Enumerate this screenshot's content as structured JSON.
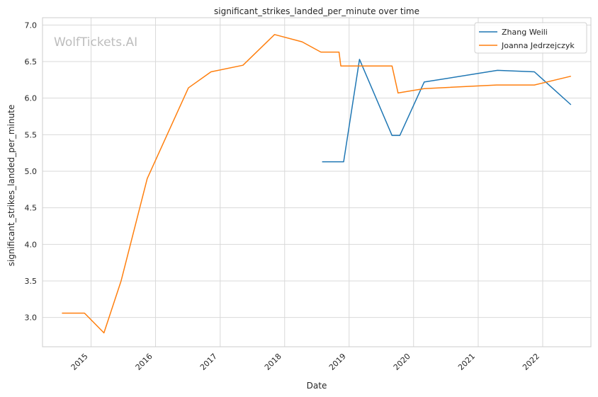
{
  "chart_data": {
    "type": "line",
    "title": "significant_strikes_landed_per_minute over time",
    "xlabel": "Date",
    "ylabel": "significant_strikes_landed_per_minute",
    "xlim": [
      "2014-04-01",
      "2022-10-01"
    ],
    "ylim": [
      2.6,
      7.1
    ],
    "x_ticks": [
      "2015",
      "2016",
      "2017",
      "2018",
      "2019",
      "2020",
      "2021",
      "2022"
    ],
    "y_ticks": [
      3.0,
      3.5,
      4.0,
      4.5,
      5.0,
      5.5,
      6.0,
      6.5,
      7.0
    ],
    "grid": true,
    "legend": "top-right",
    "watermark": "WolfTickets.AI",
    "colors": {
      "Zhang Weili": "#1f77b4",
      "Joanna Jedrzejczyk": "#ff7f0e",
      "grid": "#d9d9d9",
      "axes": "#cccccc"
    },
    "series": [
      {
        "name": "Zhang Weili",
        "points": [
          [
            "2018-08-01",
            5.13
          ],
          [
            "2018-12-01",
            5.13
          ],
          [
            "2019-03-01",
            6.53
          ],
          [
            "2019-09-01",
            5.49
          ],
          [
            "2019-10-15",
            5.49
          ],
          [
            "2020-03-01",
            6.22
          ],
          [
            "2021-04-20",
            6.38
          ],
          [
            "2021-11-15",
            6.36
          ],
          [
            "2022-06-10",
            5.91
          ]
        ]
      },
      {
        "name": "Joanna Jedrzejczyk",
        "points": [
          [
            "2014-07-20",
            3.06
          ],
          [
            "2014-11-25",
            3.06
          ],
          [
            "2015-03-15",
            2.79
          ],
          [
            "2015-06-20",
            3.5
          ],
          [
            "2015-11-15",
            4.9
          ],
          [
            "2016-07-05",
            6.14
          ],
          [
            "2016-11-10",
            6.36
          ],
          [
            "2017-05-10",
            6.45
          ],
          [
            "2017-11-05",
            6.87
          ],
          [
            "2018-04-10",
            6.77
          ],
          [
            "2018-07-25",
            6.63
          ],
          [
            "2018-11-05",
            6.63
          ],
          [
            "2018-11-15",
            6.44
          ],
          [
            "2019-09-01",
            6.44
          ],
          [
            "2019-10-05",
            6.07
          ],
          [
            "2020-03-01",
            6.13
          ],
          [
            "2021-04-15",
            6.18
          ],
          [
            "2021-11-15",
            6.18
          ],
          [
            "2022-06-10",
            6.3
          ]
        ]
      }
    ]
  }
}
